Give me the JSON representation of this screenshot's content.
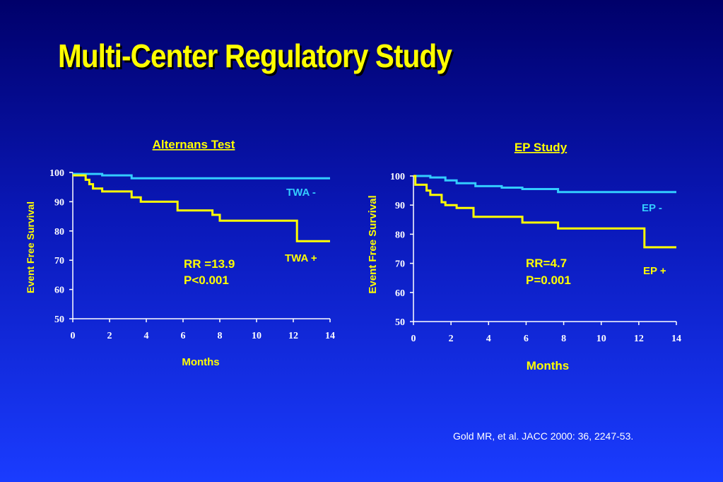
{
  "title": "Multi-Center Regulatory Study",
  "citation": "Gold MR, et al. JACC 2000: 36, 2247-53.",
  "colors": {
    "negative_curve": "#33ccff",
    "positive_curve": "#ffff00",
    "title": "#ffff00",
    "axis": "#ffffff"
  },
  "chart_data": [
    {
      "type": "line",
      "title": "Alternans Test",
      "xlabel": "Months",
      "ylabel": "Event Free Survival",
      "xlim": [
        0,
        14
      ],
      "ylim": [
        50,
        100
      ],
      "xticks": [
        "0",
        "2",
        "4",
        "6",
        "8",
        "10",
        "12",
        "14"
      ],
      "yticks": [
        "50",
        "60",
        "70",
        "80",
        "90",
        "100"
      ],
      "stats": [
        "RR =13.9",
        "P<0.001"
      ],
      "series": [
        {
          "name": "TWA -",
          "color": "#33ccff",
          "x": [
            0,
            1.6,
            1.6,
            3.2,
            3.2,
            14
          ],
          "y": [
            99.5,
            99.5,
            99,
            99,
            98,
            98
          ]
        },
        {
          "name": "TWA +",
          "color": "#ffff00",
          "x": [
            0,
            0.7,
            0.7,
            0.9,
            0.9,
            1.1,
            1.1,
            1.6,
            1.6,
            3.2,
            3.2,
            3.7,
            3.7,
            5.7,
            5.7,
            7.6,
            7.6,
            8.0,
            8.0,
            12.2,
            12.2,
            14
          ],
          "y": [
            99,
            99,
            97.5,
            97.5,
            96,
            96,
            94.5,
            94.5,
            93.5,
            93.5,
            91.5,
            91.5,
            90,
            90,
            87,
            87,
            85.5,
            85.5,
            83.5,
            83.5,
            76.5,
            76.5
          ]
        }
      ]
    },
    {
      "type": "line",
      "title": "EP Study",
      "xlabel": "Months",
      "ylabel": "Event  Free Survival",
      "xlim": [
        0,
        14
      ],
      "ylim": [
        50,
        100
      ],
      "xticks": [
        "0",
        "2",
        "4",
        "6",
        "8",
        "10",
        "12",
        "14"
      ],
      "yticks": [
        "50",
        "60",
        "70",
        "80",
        "90",
        "100"
      ],
      "stats": [
        "RR=4.7",
        "P=0.001"
      ],
      "series": [
        {
          "name": "EP -",
          "color": "#33ccff",
          "x": [
            0,
            0.9,
            0.9,
            1.7,
            1.7,
            2.3,
            2.3,
            3.3,
            3.3,
            4.7,
            4.7,
            5.8,
            5.8,
            7.7,
            7.7,
            14
          ],
          "y": [
            100,
            100,
            99.5,
            99.5,
            98.5,
            98.5,
            97.5,
            97.5,
            96.5,
            96.5,
            96,
            96,
            95.5,
            95.5,
            94.5,
            94.5
          ]
        },
        {
          "name": "EP +",
          "color": "#ffff00",
          "x": [
            0,
            0.1,
            0.1,
            0.7,
            0.7,
            0.9,
            0.9,
            1.5,
            1.5,
            1.7,
            1.7,
            2.3,
            2.3,
            3.2,
            3.2,
            5.8,
            5.8,
            7.7,
            7.7,
            12.3,
            12.3,
            14
          ],
          "y": [
            100,
            100,
            97,
            97,
            95,
            95,
            93.5,
            93.5,
            91,
            91,
            90,
            90,
            89,
            89,
            86,
            86,
            84,
            84,
            82,
            82,
            75.5,
            75.5
          ]
        }
      ]
    }
  ]
}
